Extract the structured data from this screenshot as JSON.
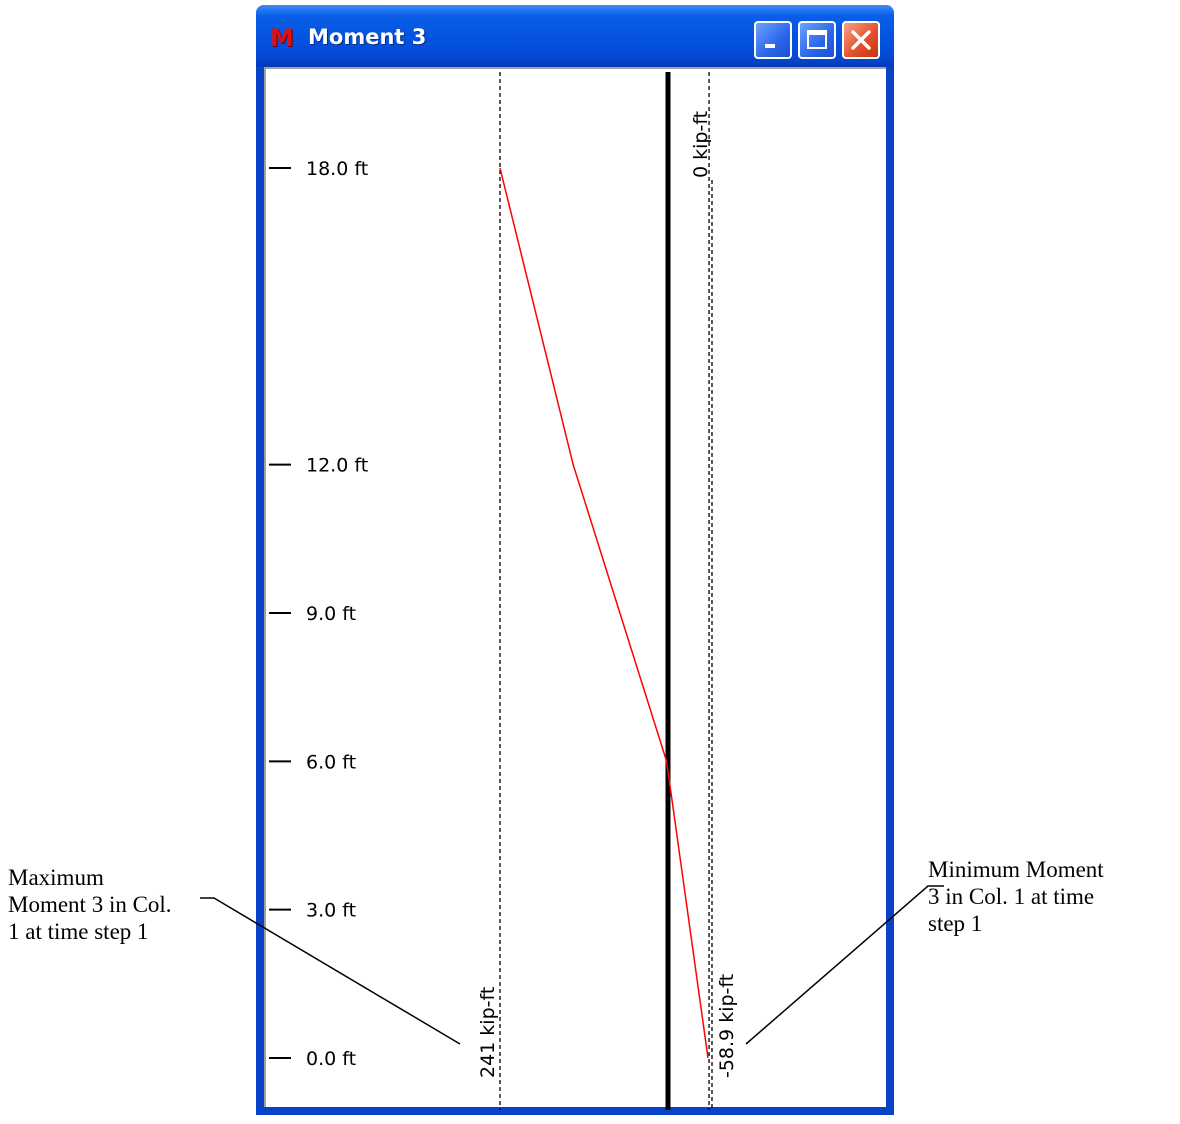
{
  "window": {
    "title": "Moment 3",
    "app_icon_letter": "M"
  },
  "annotations": {
    "max_label": [
      "Maximum",
      "Moment 3 in Col.",
      "1 at time step 1"
    ],
    "min_label": [
      "Minimum Moment",
      "3 in Col. 1 at time",
      "step 1"
    ]
  },
  "chart_data": {
    "type": "line",
    "title": "",
    "ylabel": "",
    "xlabel": "",
    "y_ticks": [
      {
        "value": 18,
        "label": "18.0 ft"
      },
      {
        "value": 12,
        "label": "12.0 ft"
      },
      {
        "value": 9,
        "label": "9.0 ft"
      },
      {
        "value": 6,
        "label": "6.0 ft"
      },
      {
        "value": 3,
        "label": "3.0 ft"
      },
      {
        "value": 0,
        "label": "0.0 ft"
      }
    ],
    "reference_lines": [
      {
        "value": 241,
        "label": "241 kip-ft"
      },
      {
        "value": 0,
        "label": "0 kip-ft"
      },
      {
        "value": -58.9,
        "label": "-58.9 kip-ft"
      }
    ],
    "series": [
      {
        "color": "#ff0000",
        "points": [
          {
            "height": 18,
            "moment": 241
          },
          {
            "height": 12,
            "moment": 136
          },
          {
            "height": 6,
            "moment": 2
          },
          {
            "height": 0,
            "moment": -58.9
          }
        ]
      }
    ],
    "zero_axis_color": "#000000",
    "grid": false
  }
}
